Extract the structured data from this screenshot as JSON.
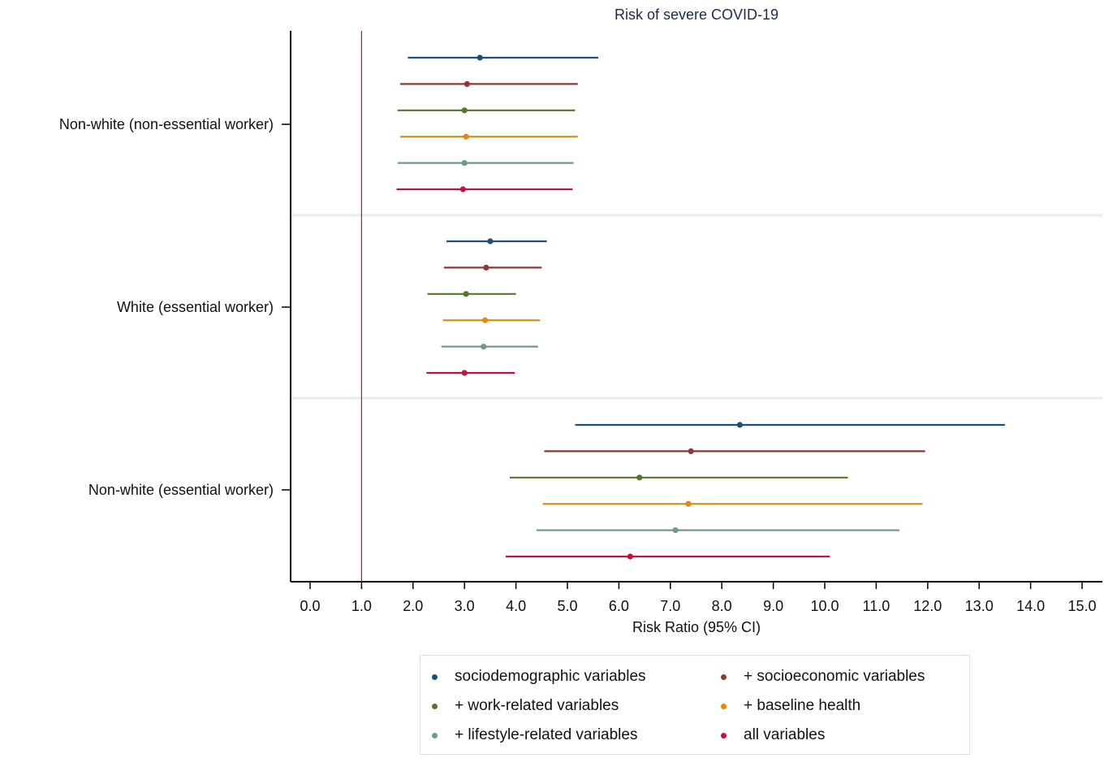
{
  "chart_data": {
    "type": "forest",
    "title": "Risk of severe COVID-19",
    "xlabel": "Risk Ratio (95% CI)",
    "xlim": [
      0.0,
      15.0
    ],
    "xticks": [
      "0.0",
      "1.0",
      "2.0",
      "3.0",
      "4.0",
      "5.0",
      "6.0",
      "7.0",
      "8.0",
      "9.0",
      "10.0",
      "11.0",
      "12.0",
      "13.0",
      "14.0",
      "15.0"
    ],
    "reference_line": 1.0,
    "reference_color": "#c0143c",
    "series": [
      {
        "name": "sociodemographic variables",
        "color": "#1f4e79"
      },
      {
        "name": "+ socioeconomic variables",
        "color": "#8b3a3a"
      },
      {
        "name": "+ work-related variables",
        "color": "#55762c"
      },
      {
        "name": "+ baseline health",
        "color": "#e8850f"
      },
      {
        "name": "+ lifestyle-related variables",
        "color": "#6f9a8a"
      },
      {
        "name": "all variables",
        "color": "#c8103e"
      }
    ],
    "groups": [
      {
        "label": "Non-white (non-essential worker)",
        "estimates": [
          {
            "rr": 3.3,
            "lo": 1.9,
            "hi": 5.6
          },
          {
            "rr": 3.05,
            "lo": 1.75,
            "hi": 5.2
          },
          {
            "rr": 3.0,
            "lo": 1.7,
            "hi": 5.15
          },
          {
            "rr": 3.03,
            "lo": 1.75,
            "hi": 5.2
          },
          {
            "rr": 3.0,
            "lo": 1.7,
            "hi": 5.12
          },
          {
            "rr": 2.97,
            "lo": 1.68,
            "hi": 5.1
          }
        ]
      },
      {
        "label": "White (essential worker)",
        "estimates": [
          {
            "rr": 3.5,
            "lo": 2.65,
            "hi": 4.6
          },
          {
            "rr": 3.42,
            "lo": 2.6,
            "hi": 4.5
          },
          {
            "rr": 3.03,
            "lo": 2.28,
            "hi": 4.0
          },
          {
            "rr": 3.4,
            "lo": 2.58,
            "hi": 4.47
          },
          {
            "rr": 3.37,
            "lo": 2.55,
            "hi": 4.43
          },
          {
            "rr": 3.0,
            "lo": 2.26,
            "hi": 3.98
          }
        ]
      },
      {
        "label": "Non-white (essential worker)",
        "estimates": [
          {
            "rr": 8.35,
            "lo": 5.15,
            "hi": 13.5
          },
          {
            "rr": 7.4,
            "lo": 4.55,
            "hi": 11.95
          },
          {
            "rr": 6.4,
            "lo": 3.88,
            "hi": 10.45
          },
          {
            "rr": 7.35,
            "lo": 4.52,
            "hi": 11.9
          },
          {
            "rr": 7.1,
            "lo": 4.4,
            "hi": 11.45
          },
          {
            "rr": 6.22,
            "lo": 3.8,
            "hi": 10.1
          }
        ]
      }
    ],
    "legend_position": "bottom"
  }
}
